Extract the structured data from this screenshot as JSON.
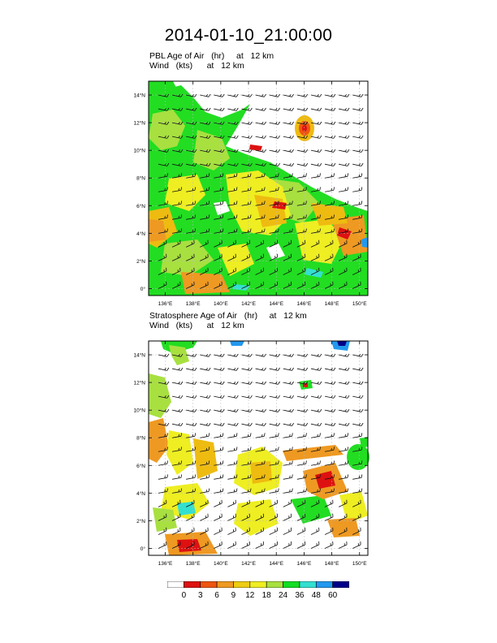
{
  "title": "2014-01-10_21:00:00",
  "panels": [
    {
      "id": "pbl",
      "line1": "PBL Age of Air   (hr)     at   12 km",
      "line2": "Wind   (kts)      at   12 km"
    },
    {
      "id": "strat",
      "line1": "Stratosphere Age of Air   (hr)     at   12 km",
      "line2": "Wind   (kts)      at   12 km"
    }
  ],
  "axes": {
    "lat_ticks": [
      "0°",
      "2°N",
      "4°N",
      "6°N",
      "8°N",
      "10°N",
      "12°N",
      "14°N"
    ],
    "lat_values": [
      0,
      2,
      4,
      6,
      8,
      10,
      12,
      14
    ],
    "lat_range": [
      -0.5,
      15
    ],
    "lon_ticks": [
      "136°E",
      "138°E",
      "140°E",
      "142°E",
      "144°E",
      "146°E",
      "148°E",
      "150°E"
    ],
    "lon_values": [
      136,
      138,
      140,
      142,
      144,
      146,
      148,
      150
    ],
    "lon_range": [
      134.8,
      150.6
    ]
  },
  "legend": {
    "colors": [
      "#ffffff",
      "#dd1111",
      "#ee5511",
      "#ee9922",
      "#eecc11",
      "#eeee22",
      "#a8e040",
      "#11dd22",
      "#33e0d0",
      "#2299ee",
      "#000088"
    ],
    "labels": [
      "0",
      "3",
      "6",
      "9",
      "12",
      "18",
      "24",
      "36",
      "48",
      "60"
    ]
  },
  "colors": {
    "green": "#22dd22",
    "light_green": "#a8e040",
    "yellow": "#eeee22",
    "gold": "#eebb11",
    "orange": "#ee9922",
    "red": "#dd1111",
    "cyan": "#33e0d0",
    "blue": "#2299ee"
  }
}
